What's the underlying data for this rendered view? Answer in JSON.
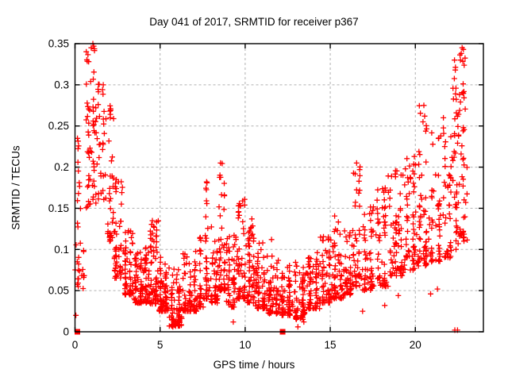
{
  "window": {
    "background_color": "#ffffff",
    "text_color": "#000000"
  },
  "chart_data": {
    "type": "scatter",
    "title": "Day 041 of 2017, SRMTID for receiver p367",
    "xlabel": "GPS time / hours",
    "ylabel": "SRMTID / TECUs",
    "xlim": [
      0,
      24
    ],
    "ylim": [
      0,
      0.35
    ],
    "xticks": [
      [
        0,
        "0"
      ],
      [
        5,
        "5"
      ],
      [
        10,
        "10"
      ],
      [
        15,
        "15"
      ],
      [
        20,
        "20"
      ]
    ],
    "yticks": [
      [
        0,
        "0"
      ],
      [
        0.05,
        "0.05"
      ],
      [
        0.1,
        "0.1"
      ],
      [
        0.15,
        "0.15"
      ],
      [
        0.2,
        "0.2"
      ],
      [
        0.25,
        "0.25"
      ],
      [
        0.3,
        "0.3"
      ],
      [
        0.35,
        "0.35"
      ]
    ],
    "grid": true,
    "grid_style": "dashed",
    "grid_color": "#b0b0b0",
    "border_color": "#000000",
    "legend": "none",
    "marker": {
      "shape": "plus",
      "color": "#ff0000",
      "size": 7,
      "stroke_width": 1.3
    },
    "square_marker": {
      "shape": "filled-square",
      "color": "#ff0000",
      "size": 7
    },
    "square_points": [
      [
        0.14,
        0
      ],
      [
        12.2,
        0
      ]
    ],
    "scatter_generator": {
      "comment": "Dense TID scatter read off the plot. Each segment: [hour_start, hour_end, n_points, value_min, value_max, low_bias_exponent]; values in TECUs. Points are regenerated deterministically from the seed.",
      "seed": 1234567,
      "segments": [
        [
          0.0,
          0.35,
          26,
          0.055,
          0.245,
          1.6
        ],
        [
          0.35,
          0.62,
          8,
          0.05,
          0.135,
          1.8
        ],
        [
          0.62,
          1.25,
          60,
          0.15,
          0.353,
          1.3
        ],
        [
          1.25,
          1.8,
          32,
          0.16,
          0.31,
          1.4
        ],
        [
          1.8,
          2.3,
          38,
          0.11,
          0.275,
          1.6
        ],
        [
          2.3,
          2.8,
          48,
          0.065,
          0.185,
          1.8
        ],
        [
          2.8,
          3.4,
          62,
          0.045,
          0.132,
          2.0
        ],
        [
          3.4,
          4.3,
          95,
          0.035,
          0.102,
          2.1
        ],
        [
          4.3,
          4.9,
          72,
          0.034,
          0.138,
          2.4
        ],
        [
          4.9,
          5.5,
          72,
          0.025,
          0.092,
          2.2
        ],
        [
          5.5,
          6.3,
          75,
          0.007,
          0.078,
          1.9
        ],
        [
          6.3,
          7.2,
          82,
          0.025,
          0.098,
          2.1
        ],
        [
          7.2,
          7.55,
          30,
          0.03,
          0.122,
          2.0
        ],
        [
          7.55,
          7.9,
          32,
          0.04,
          0.186,
          2.2
        ],
        [
          7.9,
          8.4,
          42,
          0.035,
          0.132,
          2.1
        ],
        [
          8.4,
          8.9,
          48,
          0.05,
          0.207,
          2.2
        ],
        [
          8.9,
          9.5,
          52,
          0.03,
          0.122,
          2.1
        ],
        [
          9.5,
          10.1,
          56,
          0.04,
          0.162,
          2.3
        ],
        [
          10.1,
          10.6,
          50,
          0.035,
          0.138,
          2.2
        ],
        [
          10.6,
          11.3,
          62,
          0.028,
          0.108,
          2.1
        ],
        [
          11.3,
          12.0,
          66,
          0.022,
          0.092,
          2.0
        ],
        [
          12.0,
          12.8,
          66,
          0.02,
          0.084,
          2.0
        ],
        [
          12.8,
          13.6,
          66,
          0.015,
          0.088,
          1.9
        ],
        [
          13.6,
          14.4,
          66,
          0.028,
          0.102,
          2.0
        ],
        [
          14.4,
          15.1,
          60,
          0.035,
          0.118,
          2.0
        ],
        [
          15.1,
          15.8,
          56,
          0.04,
          0.15,
          2.2
        ],
        [
          15.8,
          16.3,
          46,
          0.045,
          0.128,
          2.0
        ],
        [
          16.3,
          16.85,
          42,
          0.055,
          0.207,
          1.9
        ],
        [
          16.85,
          17.6,
          56,
          0.05,
          0.158,
          1.9
        ],
        [
          17.6,
          18.4,
          56,
          0.055,
          0.178,
          1.8
        ],
        [
          18.4,
          19.3,
          66,
          0.068,
          0.2,
          1.7
        ],
        [
          19.3,
          20.1,
          62,
          0.075,
          0.215,
          1.7
        ],
        [
          20.1,
          20.8,
          56,
          0.08,
          0.277,
          2.0
        ],
        [
          20.8,
          21.6,
          50,
          0.085,
          0.245,
          1.9
        ],
        [
          21.6,
          22.2,
          46,
          0.09,
          0.262,
          1.8
        ],
        [
          22.2,
          22.6,
          42,
          0.1,
          0.332,
          1.5
        ],
        [
          22.6,
          23.05,
          42,
          0.11,
          0.348,
          1.5
        ]
      ],
      "explicit_points": [
        [
          0.05,
          0.02
        ],
        [
          5.75,
          0.006
        ],
        [
          5.95,
          0.01
        ],
        [
          6.12,
          0.014
        ],
        [
          9.3,
          0.012
        ],
        [
          11.55,
          0.112
        ],
        [
          13.1,
          0.006
        ],
        [
          13.45,
          0.012
        ],
        [
          16.9,
          0.025
        ],
        [
          18.2,
          0.032
        ],
        [
          19.0,
          0.044
        ],
        [
          20.9,
          0.046
        ],
        [
          21.3,
          0.052
        ],
        [
          22.32,
          0.002
        ],
        [
          22.48,
          0.002
        ],
        [
          4.62,
          0.128
        ],
        [
          4.55,
          0.135
        ],
        [
          2.05,
          0.268
        ],
        [
          8.55,
          0.205
        ],
        [
          16.55,
          0.205
        ],
        [
          22.75,
          0.345
        ],
        [
          22.7,
          0.338
        ],
        [
          22.65,
          0.33
        ],
        [
          1.05,
          0.35
        ],
        [
          0.95,
          0.345
        ],
        [
          22.3,
          0.33
        ],
        [
          22.35,
          0.318
        ],
        [
          20.5,
          0.275
        ],
        [
          20.55,
          0.262
        ],
        [
          20.45,
          0.255
        ]
      ]
    }
  }
}
